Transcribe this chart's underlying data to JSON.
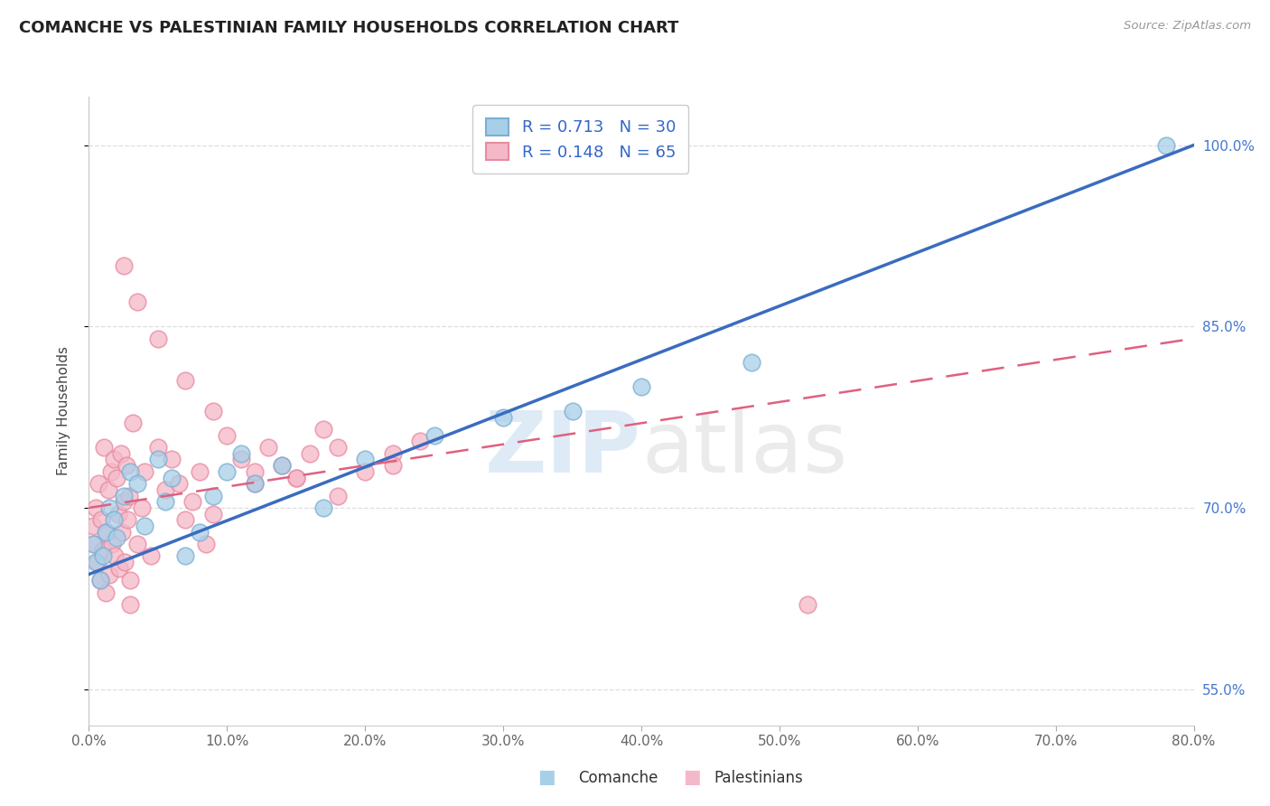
{
  "title": "COMANCHE VS PALESTINIAN FAMILY HOUSEHOLDS CORRELATION CHART",
  "source_text": "Source: ZipAtlas.com",
  "xlabel_comanche": "Comanche",
  "xlabel_palestinians": "Palestinians",
  "ylabel": "Family Households",
  "xlim": [
    0.0,
    80.0
  ],
  "ylim": [
    52.0,
    104.0
  ],
  "yticks": [
    55.0,
    70.0,
    85.0,
    100.0
  ],
  "xticks": [
    0.0,
    10.0,
    20.0,
    30.0,
    40.0,
    50.0,
    60.0,
    70.0,
    80.0
  ],
  "comanche_color": "#a8cfe8",
  "comanche_color_edge": "#7aafd4",
  "palestinian_color": "#f5b8c8",
  "palestinian_color_edge": "#e88aa0",
  "trend_comanche": "#3a6cbf",
  "trend_palestinian": "#e06080",
  "R_comanche": 0.713,
  "N_comanche": 30,
  "R_palestinian": 0.148,
  "N_palestinian": 65,
  "comanche_x": [
    0.3,
    0.5,
    0.8,
    1.0,
    1.2,
    1.5,
    1.8,
    2.0,
    2.5,
    3.0,
    3.5,
    4.0,
    5.0,
    5.5,
    6.0,
    7.0,
    8.0,
    9.0,
    10.0,
    11.0,
    12.0,
    14.0,
    17.0,
    20.0,
    25.0,
    30.0,
    35.0,
    40.0,
    48.0,
    78.0
  ],
  "comanche_y": [
    67.0,
    65.5,
    64.0,
    66.0,
    68.0,
    70.0,
    69.0,
    67.5,
    71.0,
    73.0,
    72.0,
    68.5,
    74.0,
    70.5,
    72.5,
    66.0,
    68.0,
    71.0,
    73.0,
    74.5,
    72.0,
    73.5,
    70.0,
    74.0,
    76.0,
    77.5,
    78.0,
    80.0,
    82.0,
    100.0
  ],
  "palestinian_x": [
    0.3,
    0.4,
    0.5,
    0.6,
    0.7,
    0.8,
    0.9,
    1.0,
    1.1,
    1.2,
    1.3,
    1.4,
    1.5,
    1.6,
    1.7,
    1.8,
    1.9,
    2.0,
    2.1,
    2.2,
    2.3,
    2.4,
    2.5,
    2.6,
    2.7,
    2.8,
    2.9,
    3.0,
    3.2,
    3.5,
    3.8,
    4.0,
    4.5,
    5.0,
    5.5,
    6.0,
    6.5,
    7.0,
    7.5,
    8.0,
    8.5,
    9.0,
    10.0,
    11.0,
    12.0,
    13.0,
    14.0,
    15.0,
    16.0,
    17.0,
    18.0,
    20.0,
    22.0,
    24.0,
    2.5,
    3.5,
    5.0,
    7.0,
    9.0,
    12.0,
    15.0,
    18.0,
    22.0,
    3.0,
    52.0
  ],
  "palestinian_y": [
    68.5,
    67.0,
    70.0,
    65.5,
    72.0,
    64.0,
    69.0,
    66.5,
    75.0,
    63.0,
    68.0,
    71.5,
    64.5,
    73.0,
    67.0,
    74.0,
    66.0,
    72.5,
    69.5,
    65.0,
    74.5,
    68.0,
    70.5,
    65.5,
    73.5,
    69.0,
    71.0,
    64.0,
    77.0,
    67.0,
    70.0,
    73.0,
    66.0,
    75.0,
    71.5,
    74.0,
    72.0,
    69.0,
    70.5,
    73.0,
    67.0,
    69.5,
    76.0,
    74.0,
    72.0,
    75.0,
    73.5,
    72.5,
    74.5,
    76.5,
    75.0,
    73.0,
    74.5,
    75.5,
    90.0,
    87.0,
    84.0,
    80.5,
    78.0,
    73.0,
    72.5,
    71.0,
    73.5,
    62.0,
    62.0
  ],
  "comanche_trend_x0": 0.0,
  "comanche_trend_y0": 64.5,
  "comanche_trend_x1": 80.0,
  "comanche_trend_y1": 100.0,
  "palestinian_trend_x0": 0.0,
  "palestinian_trend_y0": 70.0,
  "palestinian_trend_x1": 80.0,
  "palestinian_trend_y1": 84.0,
  "watermark_zip": "ZIP",
  "watermark_atlas": "atlas",
  "background_color": "#ffffff",
  "grid_color": "#dddddd",
  "spine_color": "#cccccc",
  "title_fontsize": 13,
  "tick_fontsize": 11,
  "ylabel_fontsize": 11,
  "legend_fontsize": 13
}
